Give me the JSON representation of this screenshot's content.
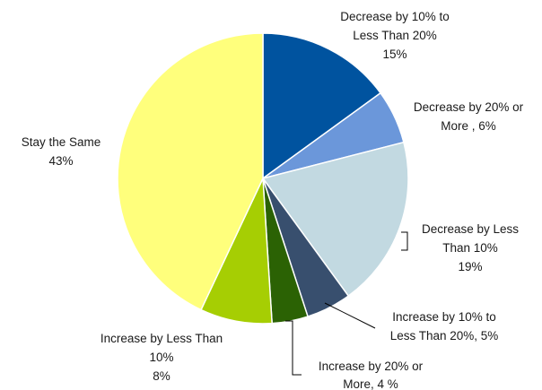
{
  "chart_data": {
    "type": "pie",
    "slices": [
      {
        "lines": [
          "Decrease by 10% to",
          "Less Than 20%",
          "15%"
        ],
        "value": 15,
        "color": "#00539F"
      },
      {
        "lines": [
          "Decrease by 20% or",
          "More , 6%"
        ],
        "value": 6,
        "color": "#6B97DA"
      },
      {
        "lines": [
          "Decrease by Less",
          "Than 10%",
          "19%"
        ],
        "value": 19,
        "color": "#C2D9E1"
      },
      {
        "lines": [
          "Increase by 10% to",
          "Less Than 20%, 5%"
        ],
        "value": 5,
        "color": "#384F6E"
      },
      {
        "lines": [
          "Increase by 20% or",
          "More, 4 %"
        ],
        "value": 4,
        "color": "#2B6204"
      },
      {
        "lines": [
          "Increase by Less Than",
          "10%",
          "8%"
        ],
        "value": 8,
        "color": "#A6CE03"
      },
      {
        "lines": [
          "Stay the Same",
          "43%"
        ],
        "value": 43,
        "color": "#FFFF7C"
      }
    ]
  }
}
